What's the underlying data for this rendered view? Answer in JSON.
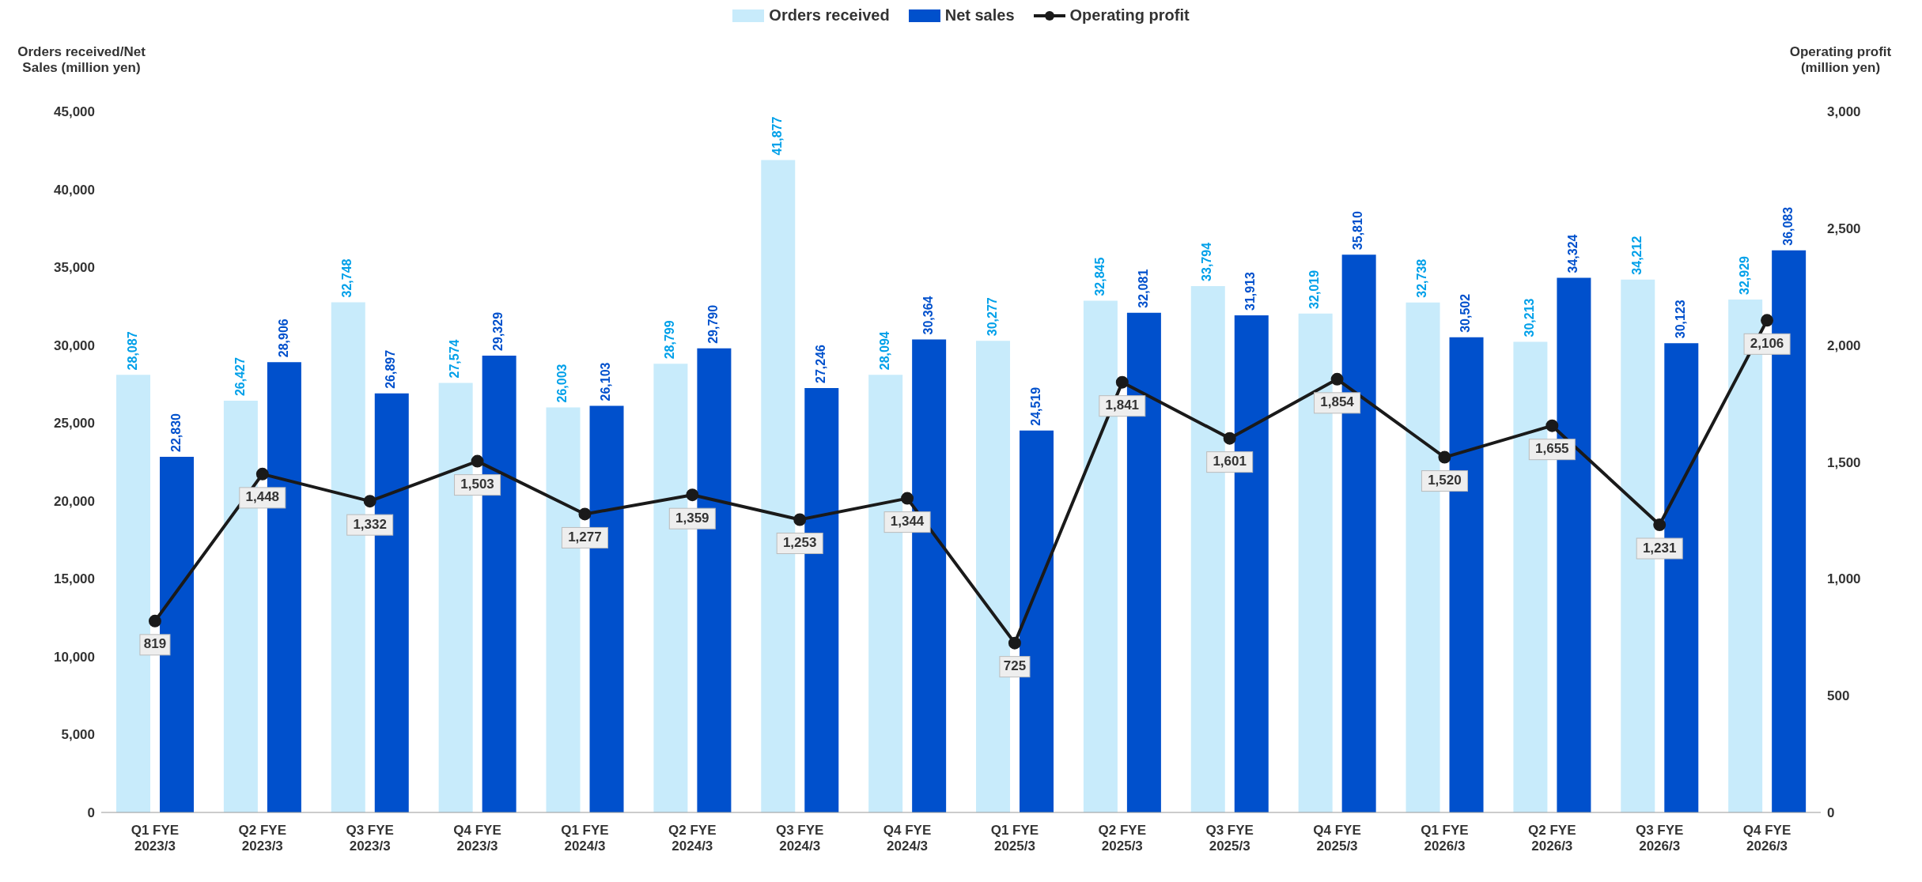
{
  "chart_data": {
    "type": "bar",
    "ylabel": "Orders received/Net Sales (million yen)",
    "y2label": "Operating profit (million yen)",
    "categories": [
      "Q1 FYE 2023/3",
      "Q2 FYE 2023/3",
      "Q3 FYE 2023/3",
      "Q4 FYE 2023/3",
      "Q1 FYE 2024/3",
      "Q2 FYE 2024/3",
      "Q3 FYE 2024/3",
      "Q4 FYE 2024/3",
      "Q1 FYE 2025/3",
      "Q2 FYE 2025/3",
      "Q3 FYE 2025/3",
      "Q4 FYE 2025/3",
      "Q1 FYE 2026/3",
      "Q2 FYE 2026/3",
      "Q3 FYE 2026/3",
      "Q4 FYE 2026/3"
    ],
    "series": [
      {
        "name": "Orders received",
        "color": "#c8ebfb",
        "values": [
          28087,
          26427,
          32748,
          27574,
          26003,
          28799,
          41877,
          28094,
          30277,
          32845,
          33794,
          32019,
          32738,
          30213,
          34212,
          32929
        ],
        "value_labels": [
          "28,087",
          "26,427",
          "32,748",
          "27,574",
          "26,003",
          "28,799",
          "41,877",
          "28,094",
          "30,277",
          "32,845",
          "33,794",
          "32,019",
          "32,738",
          "30,213",
          "34,212",
          "32,929"
        ]
      },
      {
        "name": "Net sales",
        "color": "#0050cc",
        "values": [
          22830,
          28906,
          26897,
          29329,
          26103,
          29790,
          27246,
          30364,
          24519,
          32081,
          31913,
          35810,
          30502,
          34324,
          30123,
          36083
        ],
        "value_labels": [
          "22,830",
          "28,906",
          "26,897",
          "29,329",
          "26,103",
          "29,790",
          "27,246",
          "30,364",
          "24,519",
          "32,081",
          "31,913",
          "35,810",
          "30,502",
          "34,324",
          "30,123",
          "36,083"
        ]
      },
      {
        "name": "Operating profit",
        "type": "line",
        "axis": "y2",
        "color": "#1a1a1a",
        "values": [
          819,
          1448,
          1332,
          1503,
          1277,
          1359,
          1253,
          1344,
          725,
          1841,
          1601,
          1854,
          1520,
          1655,
          1231,
          2106
        ],
        "value_labels": [
          "819",
          "1,448",
          "1,332",
          "1,503",
          "1,277",
          "1,359",
          "1,253",
          "1,344",
          "725",
          "1,841",
          "1,601",
          "1,854",
          "1,520",
          "1,655",
          "1,231",
          "2,106"
        ]
      }
    ],
    "ylim": [
      0,
      45000
    ],
    "yticks": [
      0,
      {
        "value": 5000,
        "label": "5,000"
      },
      {
        "value": 10000,
        "label": "10,000"
      },
      {
        "value": 15000,
        "label": "15,000"
      },
      {
        "value": 20000,
        "label": "20,000"
      },
      {
        "value": 25000,
        "label": "25,000"
      },
      {
        "value": 30000,
        "label": "30,000"
      },
      {
        "value": 35000,
        "label": "35,000"
      },
      {
        "value": 40000,
        "label": "40,000"
      },
      {
        "value": 45000,
        "label": "45,000"
      }
    ],
    "y2lim": [
      0,
      3000
    ],
    "y2ticks": [
      0,
      500,
      {
        "value": 1000,
        "label": "1,000"
      },
      {
        "value": 1500,
        "label": "1,500"
      },
      {
        "value": 2000,
        "label": "2,000"
      },
      {
        "value": 2500,
        "label": "2,500"
      },
      {
        "value": 3000,
        "label": "3,000"
      }
    ],
    "grid": false,
    "legend": "top",
    "marker": "circle",
    "line_style": "solid"
  }
}
